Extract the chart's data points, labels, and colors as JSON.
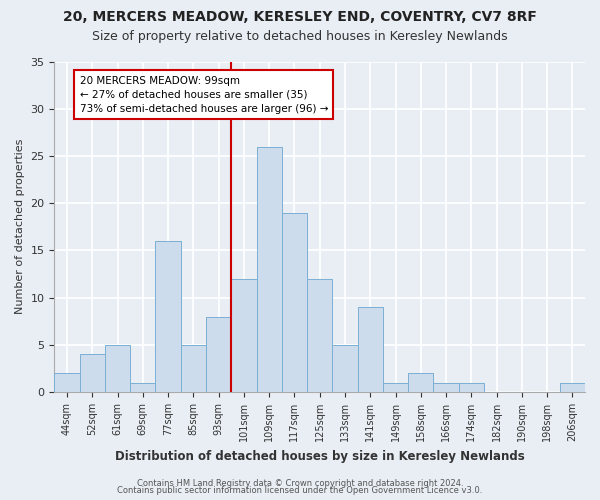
{
  "title": "20, MERCERS MEADOW, KERESLEY END, COVENTRY, CV7 8RF",
  "subtitle": "Size of property relative to detached houses in Keresley Newlands",
  "xlabel": "Distribution of detached houses by size in Keresley Newlands",
  "ylabel": "Number of detached properties",
  "bar_labels": [
    "44sqm",
    "52sqm",
    "61sqm",
    "69sqm",
    "77sqm",
    "85sqm",
    "93sqm",
    "101sqm",
    "109sqm",
    "117sqm",
    "125sqm",
    "133sqm",
    "141sqm",
    "149sqm",
    "158sqm",
    "166sqm",
    "174sqm",
    "182sqm",
    "190sqm",
    "198sqm",
    "206sqm"
  ],
  "bar_values": [
    2,
    4,
    5,
    1,
    16,
    5,
    8,
    12,
    26,
    19,
    12,
    5,
    9,
    1,
    2,
    1,
    1,
    0,
    0,
    0,
    1
  ],
  "bar_color": "#ccdcec",
  "bar_edge_color": "#7bafd4",
  "vline_x_idx": 7,
  "vline_color": "#cc0000",
  "ylim": [
    0,
    35
  ],
  "yticks": [
    0,
    5,
    10,
    15,
    20,
    25,
    30,
    35
  ],
  "annotation_title": "20 MERCERS MEADOW: 99sqm",
  "annotation_line1": "← 27% of detached houses are smaller (35)",
  "annotation_line2": "73% of semi-detached houses are larger (96) →",
  "annotation_box_facecolor": "#ffffff",
  "annotation_box_edgecolor": "#cc0000",
  "footer1": "Contains HM Land Registry data © Crown copyright and database right 2024.",
  "footer2": "Contains public sector information licensed under the Open Government Licence v3.0.",
  "bg_color": "#e8eef4",
  "plot_bg_color": "#e8eef4",
  "title_fontsize": 10,
  "subtitle_fontsize": 9
}
